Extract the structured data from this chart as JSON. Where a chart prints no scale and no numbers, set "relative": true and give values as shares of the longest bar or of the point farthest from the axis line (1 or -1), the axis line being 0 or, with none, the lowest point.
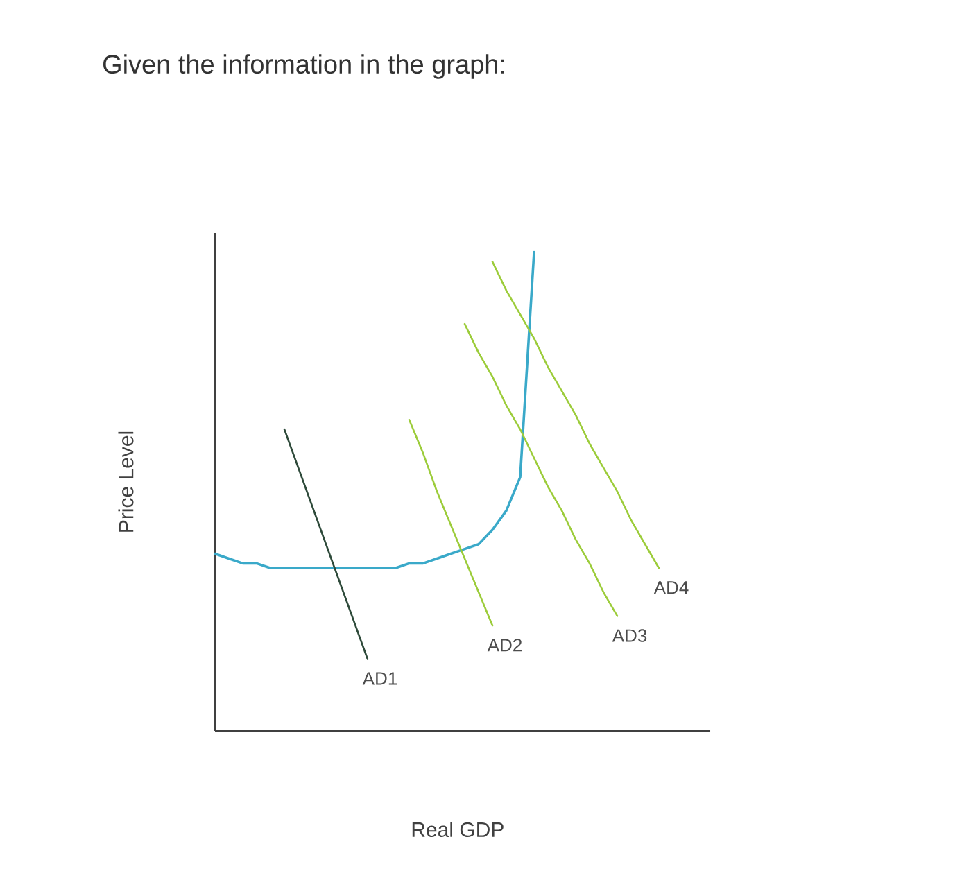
{
  "chart_data": {
    "type": "line",
    "relative": true,
    "title": "Given the information in the graph:",
    "xlabel": "Real GDP",
    "ylabel": "Price Level",
    "categories": [
      null,
      null,
      null,
      null,
      null,
      null,
      null,
      null,
      null,
      null,
      null,
      null,
      null,
      null,
      null,
      null,
      null,
      null,
      null,
      null,
      null,
      null,
      null,
      null,
      null,
      null,
      null,
      null,
      null,
      null,
      null,
      null,
      null,
      null,
      null
    ],
    "series": [
      {
        "color": "#3aa9c9",
        "values": [
          0.37,
          0.36,
          0.35,
          0.35,
          0.34,
          0.34,
          0.34,
          0.34,
          0.34,
          0.34,
          0.34,
          0.34,
          0.34,
          0.34,
          0.35,
          0.35,
          0.36,
          0.37,
          0.38,
          0.39,
          0.42,
          0.46,
          0.53,
          1.0,
          null,
          null,
          null,
          null,
          null,
          null,
          null,
          null,
          null,
          null,
          null
        ]
      },
      {
        "name": "AD1",
        "color": "#2e4a3a",
        "values": [
          null,
          null,
          null,
          null,
          null,
          0.63,
          0.55,
          0.47,
          0.39,
          0.31,
          0.23,
          0.15,
          null,
          null,
          null,
          null,
          null,
          null,
          null,
          null,
          null,
          null,
          null,
          null,
          null,
          null,
          null,
          null,
          null,
          null,
          null,
          null,
          null,
          null,
          null
        ]
      },
      {
        "name": "AD2",
        "color": "#9ccc3a",
        "values": [
          null,
          null,
          null,
          null,
          null,
          null,
          null,
          null,
          null,
          null,
          null,
          null,
          null,
          null,
          0.65,
          0.58,
          0.5,
          0.43,
          0.36,
          0.29,
          0.22,
          null,
          null,
          null,
          null,
          null,
          null,
          null,
          null,
          null,
          null,
          null,
          null,
          null,
          null
        ]
      },
      {
        "name": "AD3",
        "color": "#9ccc3a",
        "values": [
          null,
          null,
          null,
          null,
          null,
          null,
          null,
          null,
          null,
          null,
          null,
          null,
          null,
          null,
          null,
          null,
          null,
          null,
          0.85,
          0.79,
          0.74,
          0.68,
          0.63,
          0.57,
          0.51,
          0.46,
          0.4,
          0.35,
          0.29,
          0.24,
          null,
          null,
          null,
          null,
          null
        ]
      },
      {
        "name": "AD4",
        "color": "#9ccc3a",
        "values": [
          null,
          null,
          null,
          null,
          null,
          null,
          null,
          null,
          null,
          null,
          null,
          null,
          null,
          null,
          null,
          null,
          null,
          null,
          null,
          null,
          0.98,
          0.92,
          0.87,
          0.82,
          0.76,
          0.71,
          0.66,
          0.6,
          0.55,
          0.5,
          0.44,
          0.39,
          0.34,
          null,
          null
        ]
      }
    ]
  }
}
